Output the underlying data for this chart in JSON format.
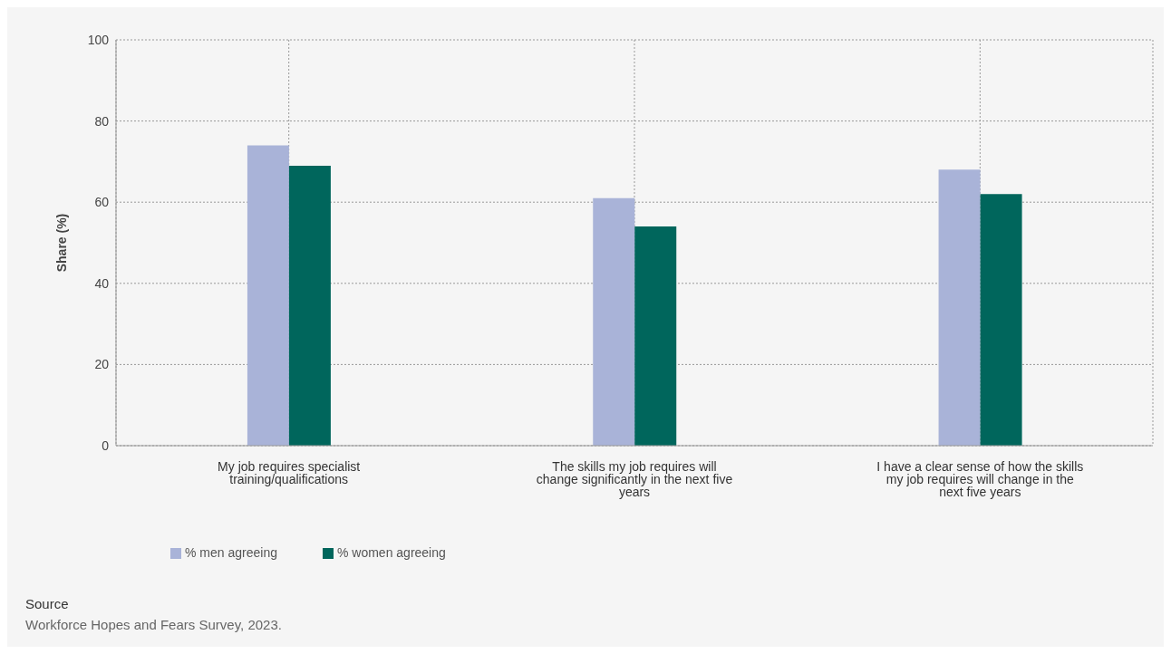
{
  "chart_data": {
    "type": "bar",
    "ylabel": "Share (%)",
    "categories": [
      "My job requires specialist training/qualifications",
      "The skills my job requires will change significantly in the next five years",
      "I have a clear sense of how the skills my job requires will change in the next five years"
    ],
    "series": [
      {
        "name": "% men agreeing",
        "color": "#a9b3d8",
        "values": [
          74,
          61,
          68
        ]
      },
      {
        "name": "% women agreeing",
        "color": "#00665c",
        "values": [
          69,
          54,
          62
        ]
      }
    ],
    "ylim": [
      0,
      100
    ],
    "yticks": [
      0,
      20,
      40,
      60,
      80,
      100
    ],
    "grid": true,
    "legend": "bottom left",
    "annotations": [
      "Source",
      "Workforce Hopes and Fears Survey, 2023."
    ]
  }
}
